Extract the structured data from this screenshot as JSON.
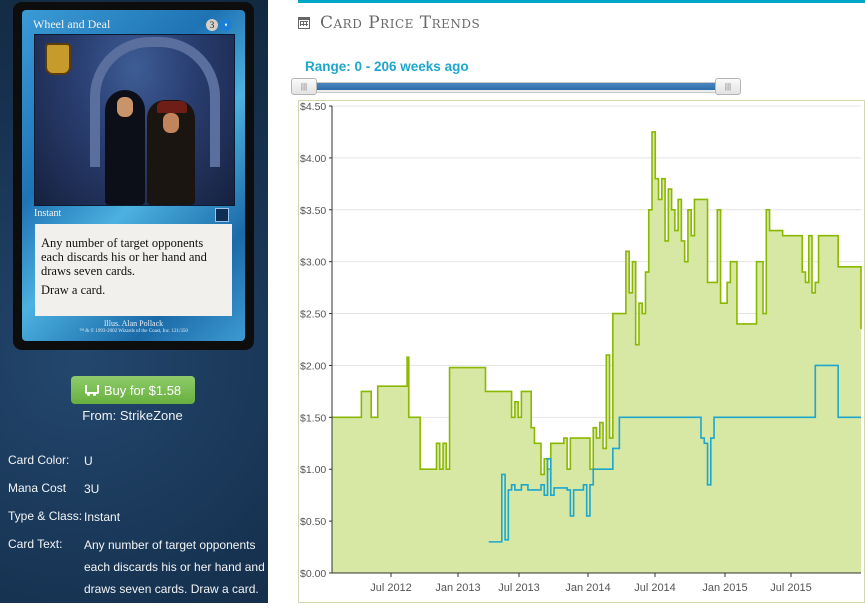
{
  "card": {
    "name": "Wheel and Deal",
    "cost_number": "3",
    "cost_symbol": "•",
    "type_line": "Instant",
    "rules_text_1": "Any number of target opponents each discards his or her hand and draws seven cards.",
    "rules_text_2": "Draw a card.",
    "illustrator": "Illus. Alan Pollack",
    "copyright": "™ & © 1993-2002 Wizards of the Coast, Inc. 121/350"
  },
  "buy": {
    "label": "Buy for $1.58",
    "icon": "shopping-cart-icon",
    "from": "From: StrikeZone"
  },
  "details": [
    {
      "key": "Card Color:",
      "value": "U"
    },
    {
      "key": "Mana Cost",
      "value": "3U"
    },
    {
      "key": "Type & Class:",
      "value": "Instant"
    },
    {
      "key": "Card Text:",
      "value": "Any number of target opponents each discards his or her hand and draws seven cards. Draw a card."
    }
  ],
  "section": {
    "title": "Card Price Trends",
    "icon": "calendar-icon"
  },
  "range": {
    "label": "Range: 0 - 206 weeks ago",
    "handle_glyph": "|||",
    "start": 0,
    "end": 206
  },
  "colors": {
    "accent": "#00a6c7",
    "green_line": "#8ab800",
    "green_fill": "#d6e8a4",
    "blue_line": "#1ea6cc",
    "button": "#70b64a",
    "sidebar": "#1b3a5c"
  },
  "chart_data": {
    "type": "line",
    "ylim": [
      0,
      4.5
    ],
    "y_ticks": [
      "$0.00",
      "$0.50",
      "$1.00",
      "$1.50",
      "$2.00",
      "$2.50",
      "$3.00",
      "$3.50",
      "$4.00",
      "$4.50"
    ],
    "x_ticks": [
      "Jul 2012",
      "Jan 2013",
      "Jul 2013",
      "Jan 2014",
      "Jul 2014",
      "Jan 2015",
      "Jul 2015"
    ],
    "series": [
      {
        "values": [
          [
            0,
            1.5
          ],
          [
            8,
            1.5
          ],
          [
            9,
            1.75
          ],
          [
            11,
            1.75
          ],
          [
            12,
            1.5
          ],
          [
            13,
            1.5
          ],
          [
            14,
            1.8
          ],
          [
            22,
            1.8
          ],
          [
            23,
            2.08
          ],
          [
            23.5,
            1.5
          ],
          [
            26,
            1.5
          ],
          [
            27,
            1.0
          ],
          [
            31,
            1.0
          ],
          [
            32,
            1.25
          ],
          [
            33,
            1.0
          ],
          [
            34,
            1.25
          ],
          [
            35,
            1.0
          ],
          [
            36,
            1.98
          ],
          [
            46,
            1.98
          ],
          [
            47,
            1.75
          ],
          [
            54,
            1.75
          ],
          [
            55,
            1.5
          ],
          [
            56,
            1.65
          ],
          [
            57,
            1.5
          ],
          [
            58,
            1.75
          ],
          [
            60,
            1.75
          ],
          [
            61,
            1.4
          ],
          [
            62,
            1.25
          ],
          [
            63,
            1.25
          ],
          [
            64,
            0.95
          ],
          [
            65,
            1.1
          ],
          [
            66,
            1.0
          ],
          [
            67,
            1.25
          ],
          [
            70,
            1.25
          ],
          [
            71,
            1.3
          ],
          [
            72,
            1.0
          ],
          [
            73,
            1.3
          ],
          [
            78,
            1.3
          ],
          [
            79,
            1.0
          ],
          [
            80,
            1.4
          ],
          [
            81,
            1.3
          ],
          [
            82,
            1.45
          ],
          [
            83,
            1.2
          ],
          [
            84,
            2.1
          ],
          [
            85,
            1.3
          ],
          [
            86,
            2.5
          ],
          [
            89,
            2.5
          ],
          [
            90,
            3.1
          ],
          [
            91,
            2.7
          ],
          [
            92,
            3.0
          ],
          [
            93,
            2.2
          ],
          [
            94,
            2.6
          ],
          [
            95,
            2.5
          ],
          [
            96,
            2.9
          ],
          [
            97,
            3.5
          ],
          [
            98,
            4.25
          ],
          [
            99,
            3.8
          ],
          [
            100,
            3.6
          ],
          [
            101,
            3.8
          ],
          [
            102,
            3.2
          ],
          [
            103,
            3.7
          ],
          [
            104,
            3.5
          ],
          [
            105,
            3.3
          ],
          [
            106,
            3.6
          ],
          [
            107,
            3.2
          ],
          [
            108,
            3.0
          ],
          [
            109,
            3.5
          ],
          [
            110,
            3.25
          ],
          [
            111,
            3.6
          ],
          [
            114,
            3.6
          ],
          [
            115,
            2.8
          ],
          [
            117,
            2.8
          ],
          [
            118,
            3.5
          ],
          [
            119,
            2.6
          ],
          [
            121,
            2.8
          ],
          [
            122,
            3.0
          ],
          [
            124,
            2.4
          ],
          [
            129,
            2.4
          ],
          [
            130,
            3.0
          ],
          [
            132,
            2.5
          ],
          [
            133,
            3.5
          ],
          [
            134,
            3.3
          ],
          [
            137,
            3.3
          ],
          [
            138,
            3.25
          ],
          [
            143,
            3.25
          ],
          [
            144,
            2.9
          ],
          [
            145,
            2.8
          ],
          [
            146,
            3.25
          ],
          [
            147,
            2.7
          ],
          [
            148,
            2.8
          ],
          [
            149,
            3.25
          ],
          [
            154,
            3.25
          ],
          [
            155,
            2.95
          ],
          [
            161,
            2.95
          ],
          [
            162,
            2.35
          ]
        ]
      },
      {
        "values": [
          [
            48,
            0.3
          ],
          [
            51,
            0.3
          ],
          [
            52,
            0.95
          ],
          [
            53,
            0.32
          ],
          [
            54,
            0.8
          ],
          [
            55,
            0.85
          ],
          [
            56,
            0.8
          ],
          [
            58,
            0.85
          ],
          [
            60,
            0.8
          ],
          [
            63,
            0.8
          ],
          [
            64,
            0.85
          ],
          [
            65,
            0.75
          ],
          [
            66,
            1.1
          ],
          [
            67,
            0.75
          ],
          [
            68,
            0.82
          ],
          [
            72,
            0.8
          ],
          [
            73,
            0.55
          ],
          [
            74,
            0.8
          ],
          [
            77,
            0.85
          ],
          [
            78,
            0.55
          ],
          [
            79,
            0.85
          ],
          [
            80,
            1.0
          ],
          [
            85,
            1.0
          ],
          [
            86,
            1.2
          ],
          [
            87,
            1.2
          ],
          [
            88,
            1.5
          ],
          [
            112,
            1.5
          ],
          [
            113,
            1.3
          ],
          [
            114,
            1.25
          ],
          [
            115,
            0.85
          ],
          [
            116,
            1.3
          ],
          [
            117,
            1.5
          ],
          [
            147,
            1.5
          ],
          [
            148,
            2.0
          ],
          [
            154,
            2.0
          ],
          [
            155,
            1.5
          ],
          [
            162,
            1.5
          ]
        ]
      }
    ]
  }
}
